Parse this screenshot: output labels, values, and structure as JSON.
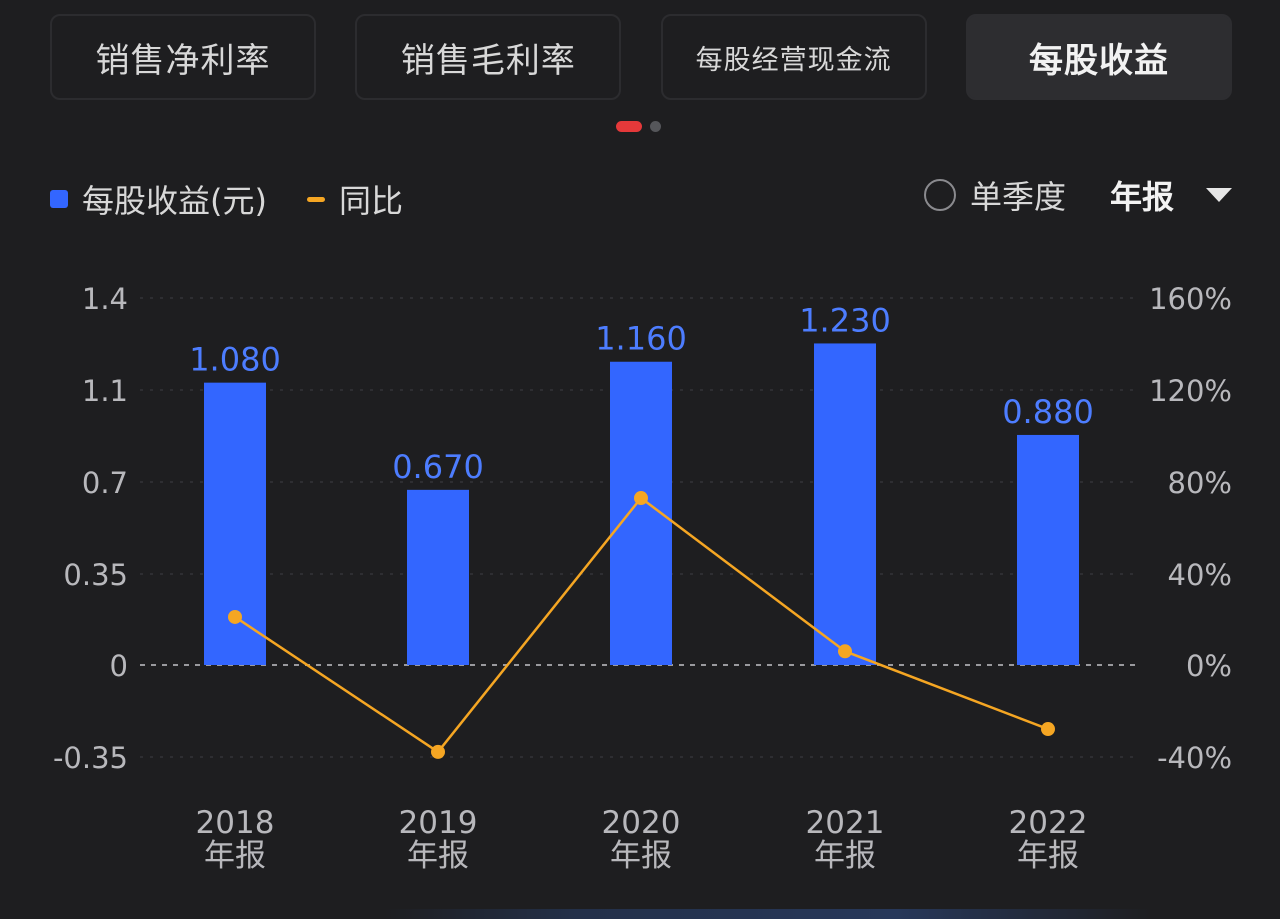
{
  "tabs": [
    {
      "label": "销售净利率",
      "active": false
    },
    {
      "label": "销售毛利率",
      "active": false
    },
    {
      "label": "每股经营现金流",
      "active": false
    },
    {
      "label": "每股收益",
      "active": true
    }
  ],
  "pager": {
    "pages": 2,
    "current": 1
  },
  "legend": {
    "bar_label": "每股收益(元)",
    "line_label": "同比"
  },
  "controls": {
    "quarter_label": "单季度",
    "period_label": "年报",
    "quarter_selected": false
  },
  "colors": {
    "bar": "#3366ff",
    "line": "#f5a623",
    "accent": "#e5393a"
  },
  "icons": {
    "radio": "radio-unchecked-icon",
    "dropdown": "triangle-down-icon"
  },
  "chart_data": {
    "type": "bar",
    "categories": [
      "2018\n年报",
      "2019\n年报",
      "2020\n年报",
      "2021\n年报",
      "2022\n年报"
    ],
    "y_left": {
      "ticks": [
        "1.4",
        "1.1",
        "0.7",
        "0.35",
        "0",
        "-0.35"
      ]
    },
    "y_right": {
      "ticks": [
        "160%",
        "120%",
        "80%",
        "40%",
        "0%",
        "-40%"
      ],
      "ylim": [
        -40,
        160
      ]
    },
    "grid": true,
    "series": [
      {
        "name": "每股收益(元)",
        "type": "bar",
        "axis": "left",
        "values": [
          1.08,
          0.67,
          1.16,
          1.23,
          0.88
        ],
        "labels": [
          "1.080",
          "0.670",
          "1.160",
          "1.230",
          "0.880"
        ]
      },
      {
        "name": "同比",
        "type": "line",
        "axis": "right",
        "values": [
          21,
          -38,
          73,
          6,
          -28
        ]
      }
    ]
  }
}
